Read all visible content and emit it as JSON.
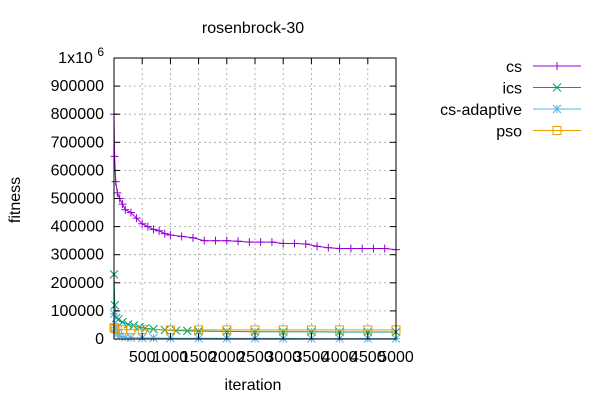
{
  "chart_data": {
    "type": "line",
    "title": "rosenbrock-30",
    "xlabel": "iteration",
    "ylabel": "fitness",
    "xlim": [
      0,
      5000
    ],
    "ylim": [
      0,
      1000000
    ],
    "grid": true,
    "legend_position": "top-right",
    "x_ticks": [
      {
        "value": 500,
        "label": "500"
      },
      {
        "value": 1000,
        "label": "1000"
      },
      {
        "value": 1500,
        "label": "1500"
      },
      {
        "value": 2000,
        "label": "2000"
      },
      {
        "value": 2500,
        "label": "2500"
      },
      {
        "value": 3000,
        "label": "3000"
      },
      {
        "value": 3500,
        "label": "3500"
      },
      {
        "value": 4000,
        "label": "4000"
      },
      {
        "value": 4500,
        "label": "4500"
      },
      {
        "value": 5000,
        "label": "5000"
      }
    ],
    "y_ticks": [
      {
        "value": 0,
        "label": "0"
      },
      {
        "value": 100000,
        "label": "100000"
      },
      {
        "value": 200000,
        "label": "200000"
      },
      {
        "value": 300000,
        "label": "300000"
      },
      {
        "value": 400000,
        "label": "400000"
      },
      {
        "value": 500000,
        "label": "500000"
      },
      {
        "value": 600000,
        "label": "600000"
      },
      {
        "value": 700000,
        "label": "700000"
      },
      {
        "value": 800000,
        "label": "800000"
      },
      {
        "value": 900000,
        "label": "900000"
      }
    ],
    "y_top_label": {
      "base": "1x10",
      "exponent": "6",
      "value": 1000000
    },
    "series": [
      {
        "name": "cs",
        "color": "#9400d3",
        "marker": "plus",
        "x": [
          0,
          10,
          30,
          60,
          100,
          150,
          200,
          300,
          400,
          500,
          600,
          700,
          800,
          900,
          1000,
          1200,
          1400,
          1600,
          1800,
          2000,
          2200,
          2400,
          2600,
          2800,
          3000,
          3200,
          3400,
          3600,
          3800,
          4000,
          4200,
          4400,
          4600,
          4800,
          5000
        ],
        "y": [
          800000,
          650000,
          560000,
          520000,
          500000,
          480000,
          460000,
          450000,
          430000,
          410000,
          400000,
          390000,
          385000,
          375000,
          370000,
          365000,
          360000,
          350000,
          350000,
          350000,
          348000,
          345000,
          345000,
          345000,
          340000,
          340000,
          338000,
          330000,
          325000,
          322000,
          322000,
          322000,
          322000,
          322000,
          318000
        ]
      },
      {
        "name": "ics",
        "color": "#009e73",
        "marker": "cross",
        "x": [
          0,
          15,
          40,
          80,
          150,
          250,
          350,
          450,
          550,
          700,
          900,
          1100,
          1300,
          1500,
          2000,
          2500,
          3000,
          3500,
          4000,
          4500,
          5000
        ],
        "y": [
          230000,
          120000,
          75000,
          70000,
          60000,
          52000,
          48000,
          42000,
          38000,
          35000,
          32000,
          30000,
          29000,
          28000,
          27000,
          26000,
          26000,
          25500,
          25000,
          25000,
          25000
        ]
      },
      {
        "name": "cs-adaptive",
        "color": "#56b4e9",
        "marker": "star",
        "x": [
          0,
          20,
          60,
          100,
          200,
          300,
          500,
          700,
          1000,
          1500,
          2000,
          2500,
          3000,
          3500,
          4000,
          4500,
          5000
        ],
        "y": [
          90000,
          40000,
          20000,
          10000,
          6000,
          5000,
          4000,
          3500,
          3000,
          2500,
          2000,
          2000,
          2000,
          1500,
          1500,
          1500,
          1500
        ]
      },
      {
        "name": "pso",
        "color": "#e69f00",
        "marker": "square",
        "x": [
          0,
          20,
          60,
          150,
          300,
          500,
          1000,
          1500,
          2000,
          2500,
          3000,
          3500,
          4000,
          4500,
          5000
        ],
        "y": [
          40000,
          36000,
          34000,
          33000,
          33000,
          33000,
          32500,
          32500,
          32500,
          32500,
          32500,
          32500,
          32500,
          32500,
          32500
        ]
      }
    ]
  }
}
